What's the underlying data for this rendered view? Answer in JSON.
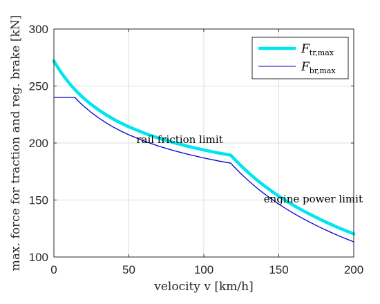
{
  "chart_data": {
    "type": "line",
    "xlim": [
      0,
      200
    ],
    "ylim": [
      100,
      300
    ],
    "xticks": [
      "0",
      "50",
      "100",
      "150",
      "200"
    ],
    "yticks": [
      "100",
      "150",
      "200",
      "250",
      "300"
    ],
    "xlabel": "velocity v [km/h]",
    "ylabel": "max. force for traction and reg. brake [kN]",
    "grid": true,
    "legend_position": "top-right",
    "annotations": [
      {
        "text": "rail friction limit",
        "x": 55,
        "y": 200
      },
      {
        "text": "engine power limit",
        "x": 140,
        "y": 148
      }
    ],
    "series": [
      {
        "name": "F_tr,max",
        "legend_main": "F",
        "legend_sub": "tr,max",
        "color": "#00e5ee",
        "x": [
          0,
          2,
          4,
          6,
          8,
          10,
          12,
          14,
          16,
          18,
          20,
          25,
          30,
          35,
          40,
          45,
          50,
          60,
          70,
          80,
          90,
          100,
          110,
          118,
          120,
          125,
          130,
          135,
          140,
          145,
          150,
          155,
          160,
          165,
          170,
          175,
          180,
          185,
          190,
          195,
          200
        ],
        "y": [
          272,
          267.6,
          263.5,
          259.7,
          256.2,
          252.9,
          249.8,
          246.9,
          244.2,
          241.6,
          239.2,
          233.7,
          228.9,
          224.6,
          220.7,
          217.3,
          214.2,
          208.8,
          204.2,
          200.3,
          196.9,
          193.9,
          191.2,
          189.3,
          186.4,
          179.8,
          173.7,
          168.0,
          162.8,
          158.0,
          153.4,
          149.2,
          145.2,
          141.5,
          138.0,
          134.7,
          131.5,
          128.5,
          125.6,
          122.9,
          120.3
        ]
      },
      {
        "name": "F_br,max",
        "legend_main": "F",
        "legend_sub": "br,max",
        "color": "#0000cc",
        "x": [
          0,
          14,
          16,
          18,
          20,
          25,
          30,
          35,
          40,
          45,
          50,
          60,
          70,
          80,
          90,
          100,
          110,
          118,
          120,
          125,
          130,
          135,
          140,
          145,
          150,
          155,
          160,
          165,
          170,
          175,
          180,
          185,
          190,
          195,
          200
        ],
        "y": [
          240,
          240,
          237.2,
          234.6,
          232.2,
          226.7,
          221.9,
          217.6,
          213.7,
          210.3,
          207.2,
          201.8,
          197.2,
          193.3,
          189.9,
          186.9,
          184.2,
          182.3,
          179.4,
          172.8,
          166.7,
          161.0,
          155.8,
          151.0,
          146.4,
          142.2,
          138.2,
          134.5,
          131.0,
          127.7,
          124.5,
          121.5,
          118.6,
          115.9,
          113.3
        ]
      }
    ]
  }
}
